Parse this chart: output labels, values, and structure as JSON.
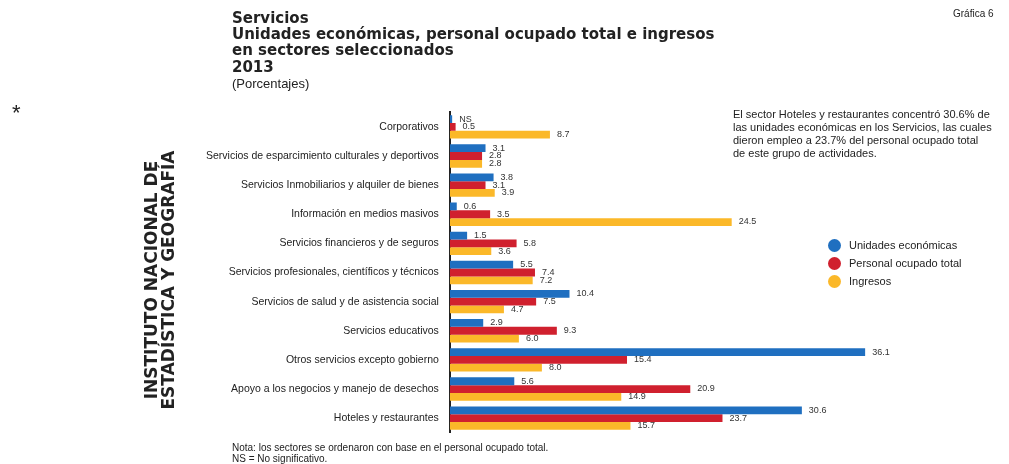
{
  "chart_data": {
    "type": "bar",
    "orientation": "horizontal",
    "title": "Servicios",
    "subtitle": "Unidades económicas, personal ocupado total e ingresos en sectores seleccionados",
    "categories": [
      "Corporativos",
      "Servicios de esparcimiento culturales y deportivos",
      "Servicios Inmobiliarios y alquiler de bienes",
      "Información en medios masivos",
      "Servicios financieros y de seguros",
      "Servicios profesionales, científicos y técnicos",
      "Servicios de salud y de asistencia social",
      "Servicios educativos",
      "Otros servicios excepto gobierno",
      "Apoyo a los negocios y manejo de desechos",
      "Hoteles y restaurantes"
    ],
    "series": [
      {
        "name": "Unidades económicas",
        "color": "#1f6fc0",
        "values": [
          0.2,
          3.1,
          3.8,
          0.6,
          1.5,
          5.5,
          10.4,
          2.9,
          36.1,
          5.6,
          30.6
        ],
        "value_labels": [
          "NS",
          "3.1",
          "3.8",
          "0.6",
          "1.5",
          "5.5",
          "10.4",
          "2.9",
          "36.1",
          "5.6",
          "30.6"
        ]
      },
      {
        "name": "Personal ocupado total",
        "color": "#d0202e",
        "values": [
          0.5,
          2.8,
          3.1,
          3.5,
          5.8,
          7.4,
          7.5,
          9.3,
          15.4,
          20.9,
          23.7
        ],
        "value_labels": [
          "0.5",
          "2.8",
          "3.1",
          "3.5",
          "5.8",
          "7.4",
          "7.5",
          "9.3",
          "15.4",
          "20.9",
          "23.7"
        ]
      },
      {
        "name": "Ingresos",
        "color": "#fbb829",
        "values": [
          8.7,
          2.8,
          3.9,
          24.5,
          3.6,
          7.2,
          4.7,
          6.0,
          8.0,
          14.9,
          15.7
        ],
        "value_labels": [
          "8.7",
          "2.8",
          "3.9",
          "24.5",
          "3.6",
          "7.2",
          "4.7",
          "6.0",
          "8.0",
          "14.9",
          "15.7"
        ]
      }
    ],
    "tick_labels": "y",
    "grid": false,
    "legend": "right",
    "annotations": [
      "2013",
      "(Porcentajes)",
      "El sector Hoteles y restaurantes concentró 30.6% de las unidades económicas en los Servicios, las cuales dieron empleo a 23.7% del personal ocupado total de este grupo de actividades.",
      "Nota: los sectores se ordenaron con base en el personal ocupado total.",
      "NS = No significativo.",
      "Gráfica 6",
      "*",
      "INSTITUTO NACIONAL DE ESTADÍSTICA Y GEOGRAFÍA"
    ]
  }
}
